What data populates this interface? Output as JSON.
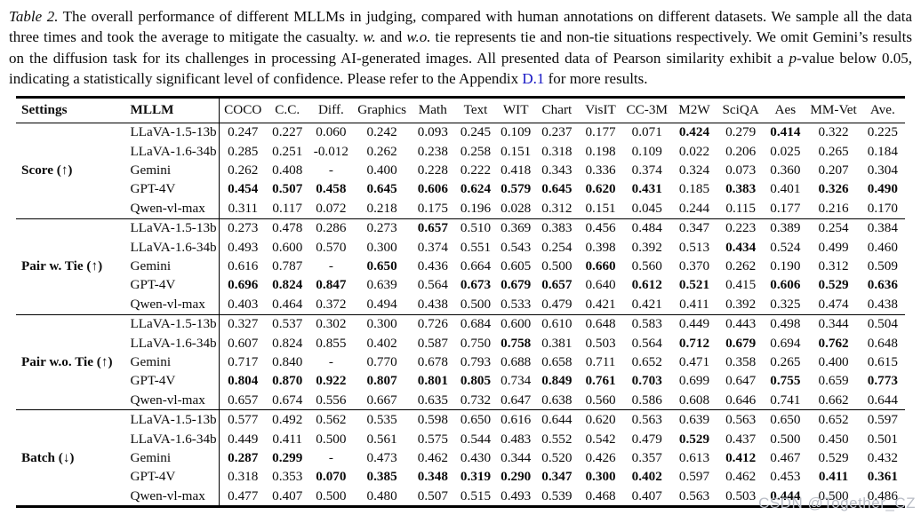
{
  "colors": {
    "text": "#0b0b0b",
    "link": "#1515c4",
    "watermark": "#b9bdc6"
  },
  "caption": {
    "segments": [
      {
        "text": "Table 2."
      },
      {
        "text": " The overall performance of different MLLMs in judging, compared with human annotations on different datasets. We sample all the data three times and took the average to mitigate the casualty. "
      },
      {
        "text": "w."
      },
      {
        "text": " and "
      },
      {
        "text": "w.o."
      },
      {
        "text": " tie represents tie and non-tie situations respectively. We omit Gemini’s results on the diffusion task for its challenges in processing AI-generated images. All presented data of Pearson similarity exhibit a "
      },
      {
        "text": "p"
      },
      {
        "text": "-value below 0.05, indicating a statistically significant level of confidence. Please refer to the Appendix "
      },
      {
        "text": "D.1"
      },
      {
        "text": " for more results."
      }
    ]
  },
  "table": {
    "settings_header": "Settings",
    "mllm_header": "MLLM",
    "columns": [
      "COCO",
      "C.C.",
      "Diff.",
      "Graphics",
      "Math",
      "Text",
      "WIT",
      "Chart",
      "VisIT",
      "CC-3M",
      "M2W",
      "SciQA",
      "Aes",
      "MM-Vet",
      "Ave."
    ],
    "groups": [
      {
        "label": "Score (↑)",
        "rows": [
          {
            "model": "LLaVA-1.5-13b",
            "values": [
              "0.247",
              "0.227",
              "0.060",
              "0.242",
              "0.093",
              "0.245",
              "0.109",
              "0.237",
              "0.177",
              "0.071",
              "0.424",
              "0.279",
              "0.414",
              "0.322",
              "0.225"
            ],
            "bold": [
              10,
              12
            ]
          },
          {
            "model": "LLaVA-1.6-34b",
            "values": [
              "0.285",
              "0.251",
              "-0.012",
              "0.262",
              "0.238",
              "0.258",
              "0.151",
              "0.318",
              "0.198",
              "0.109",
              "0.022",
              "0.206",
              "0.025",
              "0.265",
              "0.184"
            ],
            "bold": []
          },
          {
            "model": "Gemini",
            "values": [
              "0.262",
              "0.408",
              "-",
              "0.400",
              "0.228",
              "0.222",
              "0.418",
              "0.343",
              "0.336",
              "0.374",
              "0.324",
              "0.073",
              "0.360",
              "0.207",
              "0.304"
            ],
            "bold": []
          },
          {
            "model": "GPT-4V",
            "values": [
              "0.454",
              "0.507",
              "0.458",
              "0.645",
              "0.606",
              "0.624",
              "0.579",
              "0.645",
              "0.620",
              "0.431",
              "0.185",
              "0.383",
              "0.401",
              "0.326",
              "0.490"
            ],
            "bold": [
              0,
              1,
              2,
              3,
              4,
              5,
              6,
              7,
              8,
              9,
              11,
              13,
              14
            ]
          },
          {
            "model": "Qwen-vl-max",
            "values": [
              "0.311",
              "0.117",
              "0.072",
              "0.218",
              "0.175",
              "0.196",
              "0.028",
              "0.312",
              "0.151",
              "0.045",
              "0.244",
              "0.115",
              "0.177",
              "0.216",
              "0.170"
            ],
            "bold": []
          }
        ]
      },
      {
        "label": "Pair w. Tie (↑)",
        "rows": [
          {
            "model": "LLaVA-1.5-13b",
            "values": [
              "0.273",
              "0.478",
              "0.286",
              "0.273",
              "0.657",
              "0.510",
              "0.369",
              "0.383",
              "0.456",
              "0.484",
              "0.347",
              "0.223",
              "0.389",
              "0.254",
              "0.384"
            ],
            "bold": [
              4
            ]
          },
          {
            "model": "LLaVA-1.6-34b",
            "values": [
              "0.493",
              "0.600",
              "0.570",
              "0.300",
              "0.374",
              "0.551",
              "0.543",
              "0.254",
              "0.398",
              "0.392",
              "0.513",
              "0.434",
              "0.524",
              "0.499",
              "0.460"
            ],
            "bold": [
              11
            ]
          },
          {
            "model": "Gemini",
            "values": [
              "0.616",
              "0.787",
              "-",
              "0.650",
              "0.436",
              "0.664",
              "0.605",
              "0.500",
              "0.660",
              "0.560",
              "0.370",
              "0.262",
              "0.190",
              "0.312",
              "0.509"
            ],
            "bold": [
              3,
              8
            ]
          },
          {
            "model": "GPT-4V",
            "values": [
              "0.696",
              "0.824",
              "0.847",
              "0.639",
              "0.564",
              "0.673",
              "0.679",
              "0.657",
              "0.640",
              "0.612",
              "0.521",
              "0.415",
              "0.606",
              "0.529",
              "0.636"
            ],
            "bold": [
              0,
              1,
              2,
              5,
              6,
              7,
              9,
              10,
              12,
              13,
              14
            ]
          },
          {
            "model": "Qwen-vl-max",
            "values": [
              "0.403",
              "0.464",
              "0.372",
              "0.494",
              "0.438",
              "0.500",
              "0.533",
              "0.479",
              "0.421",
              "0.421",
              "0.411",
              "0.392",
              "0.325",
              "0.474",
              "0.438"
            ],
            "bold": []
          }
        ]
      },
      {
        "label": "Pair w.o. Tie (↑)",
        "rows": [
          {
            "model": "LLaVA-1.5-13b",
            "values": [
              "0.327",
              "0.537",
              "0.302",
              "0.300",
              "0.726",
              "0.684",
              "0.600",
              "0.610",
              "0.648",
              "0.583",
              "0.449",
              "0.443",
              "0.498",
              "0.344",
              "0.504"
            ],
            "bold": []
          },
          {
            "model": "LLaVA-1.6-34b",
            "values": [
              "0.607",
              "0.824",
              "0.855",
              "0.402",
              "0.587",
              "0.750",
              "0.758",
              "0.381",
              "0.503",
              "0.564",
              "0.712",
              "0.679",
              "0.694",
              "0.762",
              "0.648"
            ],
            "bold": [
              6,
              10,
              11,
              13
            ]
          },
          {
            "model": "Gemini",
            "values": [
              "0.717",
              "0.840",
              "-",
              "0.770",
              "0.678",
              "0.793",
              "0.688",
              "0.658",
              "0.711",
              "0.652",
              "0.471",
              "0.358",
              "0.265",
              "0.400",
              "0.615"
            ],
            "bold": []
          },
          {
            "model": "GPT-4V",
            "values": [
              "0.804",
              "0.870",
              "0.922",
              "0.807",
              "0.801",
              "0.805",
              "0.734",
              "0.849",
              "0.761",
              "0.703",
              "0.699",
              "0.647",
              "0.755",
              "0.659",
              "0.773"
            ],
            "bold": [
              0,
              1,
              2,
              3,
              4,
              5,
              7,
              8,
              9,
              12,
              14
            ]
          },
          {
            "model": "Qwen-vl-max",
            "values": [
              "0.657",
              "0.674",
              "0.556",
              "0.667",
              "0.635",
              "0.732",
              "0.647",
              "0.638",
              "0.560",
              "0.586",
              "0.608",
              "0.646",
              "0.741",
              "0.662",
              "0.644"
            ],
            "bold": []
          }
        ]
      },
      {
        "label": "Batch (↓)",
        "rows": [
          {
            "model": "LLaVA-1.5-13b",
            "values": [
              "0.577",
              "0.492",
              "0.562",
              "0.535",
              "0.598",
              "0.650",
              "0.616",
              "0.644",
              "0.620",
              "0.563",
              "0.639",
              "0.563",
              "0.650",
              "0.652",
              "0.597"
            ],
            "bold": []
          },
          {
            "model": "LLaVA-1.6-34b",
            "values": [
              "0.449",
              "0.411",
              "0.500",
              "0.561",
              "0.575",
              "0.544",
              "0.483",
              "0.552",
              "0.542",
              "0.479",
              "0.529",
              "0.437",
              "0.500",
              "0.450",
              "0.501"
            ],
            "bold": [
              10
            ]
          },
          {
            "model": "Gemini",
            "values": [
              "0.287",
              "0.299",
              "-",
              "0.473",
              "0.462",
              "0.430",
              "0.344",
              "0.520",
              "0.426",
              "0.357",
              "0.613",
              "0.412",
              "0.467",
              "0.529",
              "0.432"
            ],
            "bold": [
              0,
              1,
              11
            ]
          },
          {
            "model": "GPT-4V",
            "values": [
              "0.318",
              "0.353",
              "0.070",
              "0.385",
              "0.348",
              "0.319",
              "0.290",
              "0.347",
              "0.300",
              "0.402",
              "0.597",
              "0.462",
              "0.453",
              "0.411",
              "0.361"
            ],
            "bold": [
              2,
              3,
              4,
              5,
              6,
              7,
              8,
              9,
              13,
              14
            ]
          },
          {
            "model": "Qwen-vl-max",
            "values": [
              "0.477",
              "0.407",
              "0.500",
              "0.480",
              "0.507",
              "0.515",
              "0.493",
              "0.539",
              "0.468",
              "0.407",
              "0.563",
              "0.503",
              "0.444",
              "0.500",
              "0.486"
            ],
            "bold": [
              12
            ]
          }
        ]
      }
    ]
  },
  "watermark": {
    "text": "CSDN @Together_CZ"
  }
}
